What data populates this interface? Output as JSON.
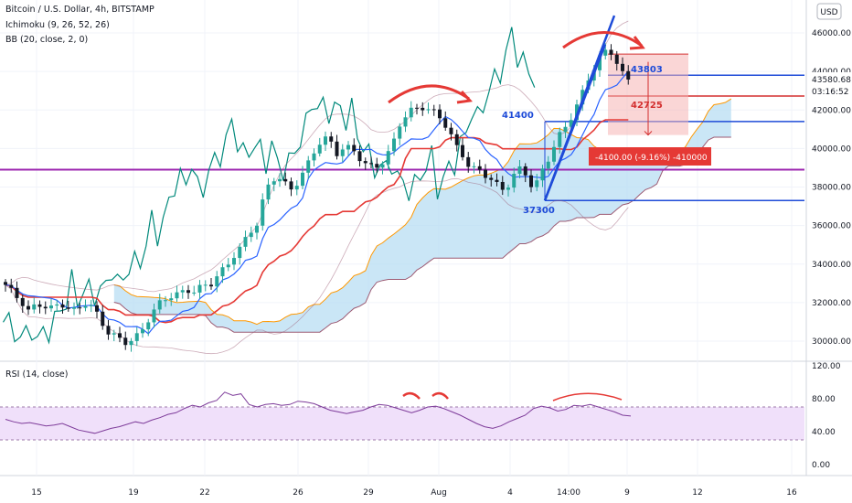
{
  "header": {
    "symbol_title": "Bitcoin / U.S. Dollar, 4h, BITSTAMP",
    "indicator_ichimoku": "Ichimoku (9, 26, 52, 26)",
    "indicator_bb": "BB (20, close, 2, 0)",
    "currency_button": "USD",
    "rsi_title": "RSI (14, close)"
  },
  "price_scale": {
    "ticks": [
      "46000.00",
      "44000.00",
      "42000.00",
      "40000.00",
      "38000.00",
      "36000.00",
      "34000.00",
      "32000.00",
      "30000.00"
    ],
    "last_price": "43580.68",
    "countdown": "03:16:52"
  },
  "rsi_scale": {
    "ticks": [
      "120.00",
      "80.00",
      "40.00",
      "0.00"
    ]
  },
  "time_axis": {
    "labels": [
      "15",
      "19",
      "22",
      "26",
      "29",
      "Aug",
      "4",
      "14:00",
      "9",
      "12",
      "16"
    ]
  },
  "annotations": {
    "level_41400": "41400",
    "level_37300": "37300",
    "target_43803": "43803",
    "level_42725": "42725",
    "measure_label": "-4100.00 (-9.16%) -410000"
  },
  "colors": {
    "bull_candle": "#26a69a",
    "bear_candle": "#131722",
    "conversion_line": "#2962ff",
    "base_line": "#e53935",
    "leading_span_a": "#ff9800",
    "lagging_line": "#00897b",
    "cloud_bull": "#b3dcf2",
    "cloud_bear": "#f4a0a0",
    "bb_line": "#9c5a73",
    "purple_level": "#9c27b0",
    "blue_level": "#1e4bd8",
    "red_level": "#d32f2f",
    "rsi_line": "#7e3c9a",
    "rsi_band": "#f0e0fa",
    "annotation_arrow": "#e53935"
  },
  "chart_data": [
    {
      "type": "candlestick",
      "title": "Bitcoin / U.S. Dollar, 4h, BITSTAMP",
      "x_labels": [
        "15",
        "19",
        "22",
        "26",
        "29",
        "Aug",
        "4",
        "14:00",
        "9",
        "12",
        "16"
      ],
      "ylim": [
        29000,
        47000
      ],
      "close_path": [
        32800,
        32400,
        32200,
        31600,
        31900,
        31700,
        31600,
        32100,
        31800,
        31500,
        31900,
        31700,
        31200,
        30600,
        30200,
        29800,
        30000,
        30400,
        31200,
        31700,
        32000,
        32300,
        32500,
        32800,
        32600,
        32700,
        32900,
        33500,
        34000,
        34500,
        34800,
        35600,
        36200,
        38000,
        38500,
        38300,
        37700,
        38300,
        39000,
        39800,
        40300,
        40400,
        39800,
        40200,
        40000,
        39400,
        38900,
        39100,
        39500,
        40100,
        41200,
        41700,
        42100,
        42300,
        42000,
        41600,
        41000,
        40200,
        39800,
        39000,
        38800,
        38500,
        38200,
        38000,
        38300,
        38900,
        38600,
        37800,
        38900,
        39700,
        40400,
        41000,
        41800,
        42800,
        43800,
        44400,
        44900,
        45000,
        44100,
        43580.68
      ],
      "levels": [
        {
          "name": "purple",
          "value": 38900
        },
        {
          "name": "blue",
          "value": 41400
        },
        {
          "name": "blue-low",
          "value": 37300
        },
        {
          "name": "blue-target",
          "value": 43803
        },
        {
          "name": "red",
          "value": 42725
        }
      ],
      "last_price": 43580.68
    },
    {
      "type": "line",
      "title": "RSI (14, close)",
      "ylim": [
        -20,
        120
      ],
      "band": [
        30,
        70
      ],
      "values": [
        55,
        52,
        50,
        51,
        49,
        47,
        48,
        50,
        46,
        42,
        40,
        38,
        41,
        44,
        46,
        49,
        52,
        50,
        54,
        57,
        61,
        63,
        68,
        72,
        70,
        75,
        78,
        88,
        84,
        86,
        73,
        70,
        73,
        74,
        72,
        73,
        77,
        76,
        74,
        70,
        66,
        64,
        62,
        64,
        66,
        70,
        73,
        72,
        69,
        66,
        63,
        66,
        70,
        71,
        68,
        64,
        60,
        55,
        50,
        46,
        44,
        47,
        52,
        56,
        60,
        68,
        71,
        69,
        65,
        67,
        72,
        71,
        73,
        70,
        67,
        64,
        60,
        59
      ]
    }
  ]
}
